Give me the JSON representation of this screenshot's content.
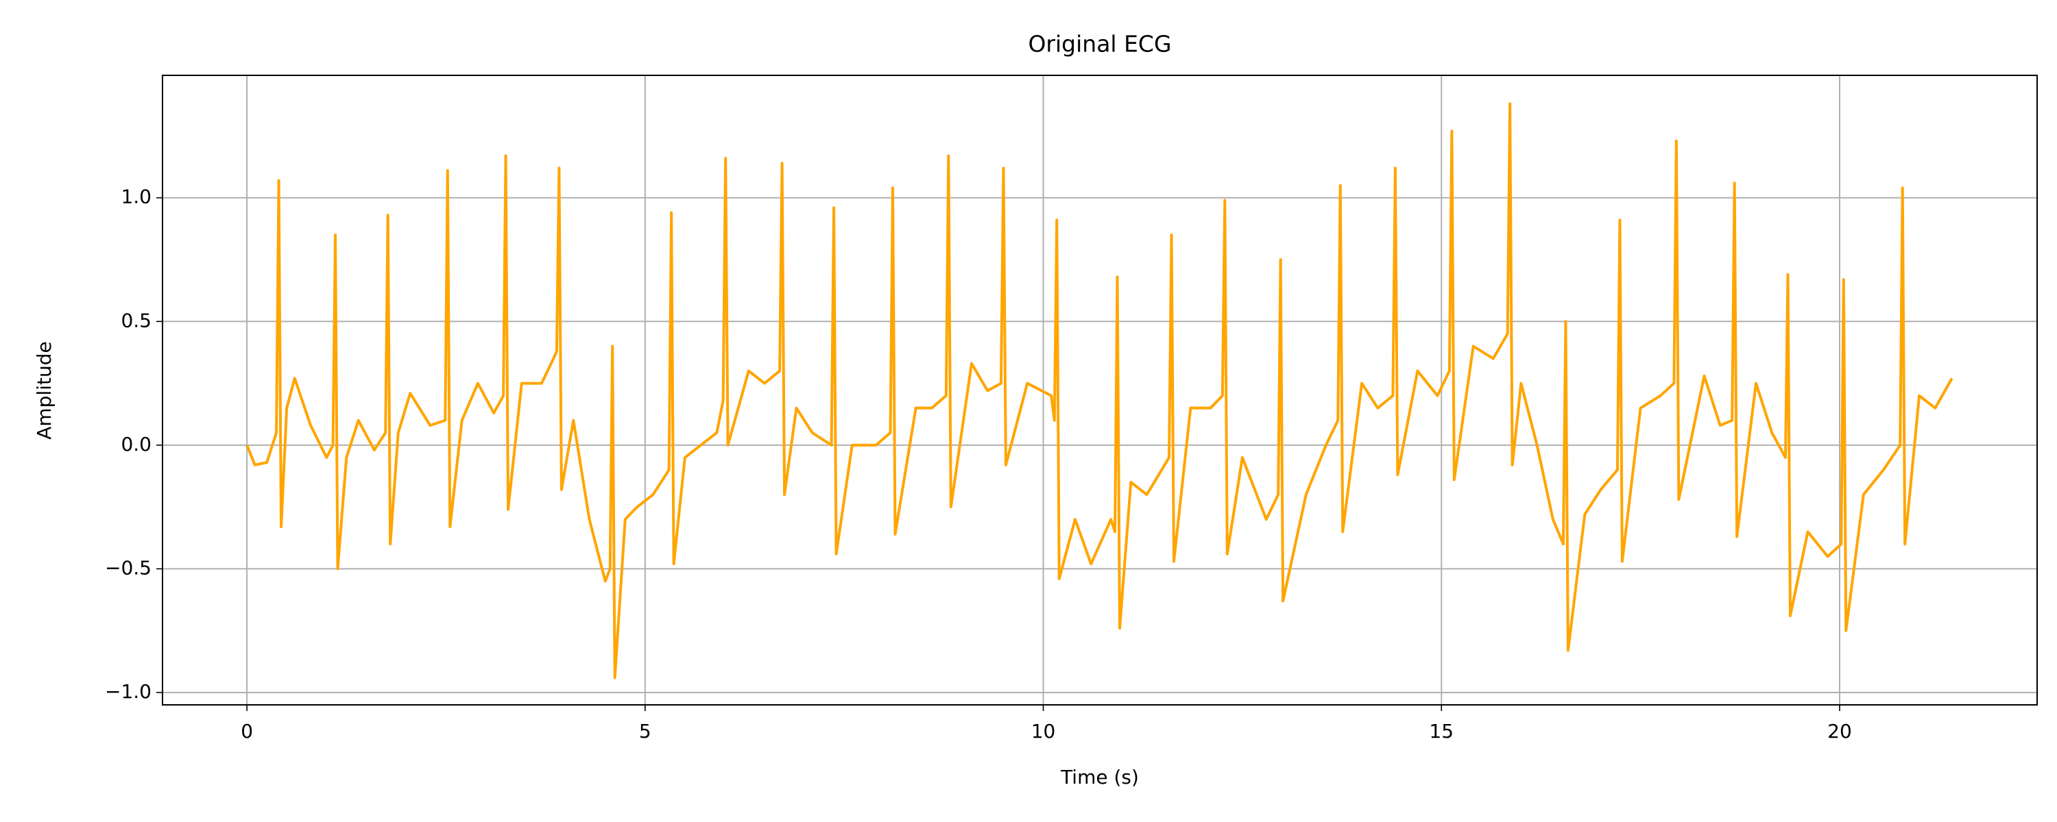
{
  "chart_data": {
    "type": "line",
    "title": "Original ECG",
    "xlabel": "Time (s)",
    "ylabel": "Amplitude",
    "xlim": [
      -1.06,
      22.48
    ],
    "ylim": [
      -1.05,
      1.495
    ],
    "xticks": [
      0,
      5,
      10,
      15,
      20
    ],
    "yticks": [
      {
        "value": -1.0,
        "label": "−1.0"
      },
      {
        "value": -0.5,
        "label": "−0.5"
      },
      {
        "value": 0,
        "label": "0.0"
      },
      0.5,
      {
        "value": 1.0,
        "label": "1.0"
      }
    ],
    "grid": true,
    "series": [
      {
        "color": "#ffa500",
        "x": [
          0,
          0.1,
          0.25,
          0.37,
          0.4,
          0.43,
          0.5,
          0.6,
          0.8,
          1.0,
          1.08,
          1.11,
          1.14,
          1.25,
          1.4,
          1.6,
          1.74,
          1.77,
          1.8,
          1.9,
          2.05,
          2.3,
          2.49,
          2.52,
          2.55,
          2.7,
          2.9,
          3.1,
          3.22,
          3.25,
          3.28,
          3.45,
          3.7,
          3.85,
          3.89,
          3.92,
          3.95,
          4.1,
          4.3,
          4.5,
          4.56,
          4.59,
          4.62,
          4.75,
          4.9,
          5.1,
          5.3,
          5.33,
          5.36,
          5.5,
          5.7,
          5.9,
          5.98,
          6.01,
          6.04,
          6.3,
          6.5,
          6.69,
          6.72,
          6.75,
          6.9,
          7.1,
          7.34,
          7.37,
          7.4,
          7.6,
          7.9,
          8.08,
          8.11,
          8.14,
          8.4,
          8.6,
          8.78,
          8.81,
          8.84,
          9.1,
          9.3,
          9.47,
          9.5,
          9.53,
          9.8,
          10.1,
          10.14,
          10.17,
          10.2,
          10.4,
          10.6,
          10.85,
          10.9,
          10.93,
          10.96,
          11.1,
          11.3,
          11.58,
          11.61,
          11.64,
          11.85,
          12.1,
          12.25,
          12.28,
          12.31,
          12.5,
          12.8,
          12.95,
          12.98,
          13.01,
          13.3,
          13.55,
          13.7,
          13.73,
          13.76,
          14.0,
          14.2,
          14.39,
          14.42,
          14.45,
          14.7,
          14.95,
          15.1,
          15.13,
          15.16,
          15.4,
          15.65,
          15.83,
          15.86,
          15.89,
          16.0,
          16.2,
          16.4,
          16.53,
          16.56,
          16.59,
          16.8,
          17.0,
          17.21,
          17.24,
          17.27,
          17.5,
          17.75,
          17.92,
          17.95,
          17.98,
          18.3,
          18.5,
          18.65,
          18.68,
          18.71,
          18.95,
          19.15,
          19.32,
          19.35,
          19.38,
          19.6,
          19.85,
          20.02,
          20.05,
          20.08,
          20.3,
          20.55,
          20.76,
          20.79,
          20.82,
          21.0,
          21.2,
          21.41
        ],
        "values": [
          0.0,
          -0.08,
          -0.07,
          0.05,
          1.07,
          -0.33,
          0.15,
          0.27,
          0.08,
          -0.05,
          0.0,
          0.85,
          -0.5,
          -0.05,
          0.1,
          -0.02,
          0.05,
          0.93,
          -0.4,
          0.05,
          0.21,
          0.08,
          0.1,
          1.11,
          -0.33,
          0.1,
          0.25,
          0.13,
          0.2,
          1.17,
          -0.26,
          0.25,
          0.25,
          0.35,
          0.38,
          1.12,
          -0.18,
          0.1,
          -0.3,
          -0.55,
          -0.5,
          0.4,
          -0.94,
          -0.3,
          -0.25,
          -0.2,
          -0.1,
          0.94,
          -0.48,
          -0.05,
          0.0,
          0.05,
          0.18,
          1.16,
          0.0,
          0.3,
          0.25,
          0.3,
          1.14,
          -0.2,
          0.15,
          0.05,
          0.0,
          0.96,
          -0.44,
          0.0,
          0.0,
          0.05,
          1.04,
          -0.36,
          0.15,
          0.15,
          0.2,
          1.17,
          -0.25,
          0.33,
          0.22,
          0.25,
          1.12,
          -0.08,
          0.25,
          0.2,
          0.1,
          0.91,
          -0.54,
          -0.3,
          -0.48,
          -0.3,
          -0.35,
          0.68,
          -0.74,
          -0.15,
          -0.2,
          -0.05,
          0.85,
          -0.47,
          0.15,
          0.15,
          0.2,
          0.99,
          -0.44,
          -0.05,
          -0.3,
          -0.2,
          0.75,
          -0.63,
          -0.2,
          0.0,
          0.1,
          1.05,
          -0.35,
          0.25,
          0.15,
          0.2,
          1.12,
          -0.12,
          0.3,
          0.2,
          0.3,
          1.27,
          -0.14,
          0.4,
          0.35,
          0.45,
          1.38,
          -0.08,
          0.25,
          0.0,
          -0.3,
          -0.4,
          0.5,
          -0.83,
          -0.28,
          -0.18,
          -0.1,
          0.91,
          -0.47,
          0.15,
          0.2,
          0.25,
          1.23,
          -0.22,
          0.28,
          0.08,
          0.1,
          1.06,
          -0.37,
          0.25,
          0.05,
          -0.05,
          0.69,
          -0.69,
          -0.35,
          -0.45,
          -0.4,
          0.67,
          -0.75,
          -0.2,
          -0.1,
          0.0,
          1.04,
          -0.4,
          0.2,
          0.15,
          0.27
        ]
      }
    ]
  }
}
